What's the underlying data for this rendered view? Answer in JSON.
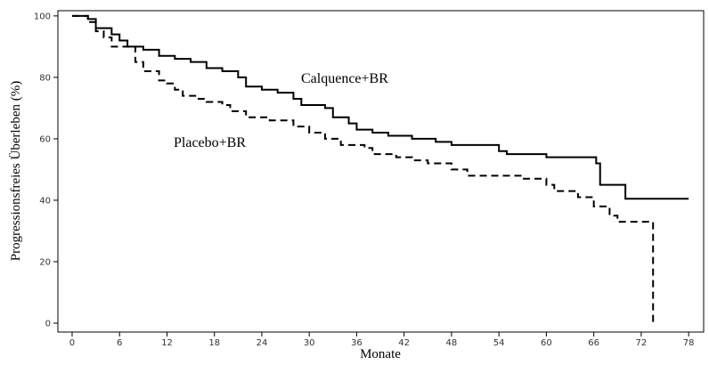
{
  "chart_data": {
    "type": "step",
    "x_label": "Monate",
    "y_label": "Progressionsfreies Überleben (%)",
    "xlim": [
      -1.8,
      79.9
    ],
    "ylim": [
      -2.9,
      101.7
    ],
    "xticks": [
      0,
      6,
      12,
      18,
      24,
      30,
      36,
      42,
      48,
      54,
      60,
      66,
      72,
      78
    ],
    "yticks": [
      0,
      20,
      40,
      60,
      80,
      100
    ],
    "series": [
      {
        "name": "Calquence+BR",
        "color": "#000000",
        "dash": false,
        "x": [
          0,
          2,
          3,
          5,
          6,
          7,
          9,
          11,
          13,
          15,
          17,
          19,
          21,
          22,
          24,
          26,
          28,
          29,
          32,
          33,
          35,
          36,
          38,
          40,
          43,
          46,
          48,
          54,
          55,
          60,
          66.3,
          66.8,
          70,
          78
        ],
        "values": [
          100,
          99,
          96,
          94,
          92,
          90,
          89,
          87,
          86,
          85,
          83,
          82,
          80,
          77,
          76,
          75,
          73,
          71,
          70,
          67,
          65,
          63,
          62,
          61,
          60,
          59,
          58,
          56,
          55,
          54,
          52,
          45,
          40.5,
          40.5
        ]
      },
      {
        "name": "Placebo+BR",
        "color": "#000000",
        "dash": true,
        "x": [
          0,
          2,
          3,
          4,
          5,
          8,
          9,
          11,
          12,
          13,
          14,
          16,
          17,
          19,
          20,
          22,
          25,
          28,
          30,
          32,
          34,
          37,
          38,
          41,
          43,
          45,
          48,
          50,
          55,
          57,
          60,
          61,
          64,
          66,
          68,
          69,
          73.5,
          73.5
        ],
        "values": [
          100,
          98,
          95,
          93,
          90,
          85,
          82,
          79,
          78,
          76,
          74,
          73,
          72,
          71,
          69,
          67,
          66,
          64,
          62,
          60,
          58,
          57,
          55,
          54,
          53,
          52,
          50,
          48,
          48,
          47,
          45,
          43,
          41,
          38,
          35,
          33,
          33,
          0
        ]
      }
    ]
  }
}
